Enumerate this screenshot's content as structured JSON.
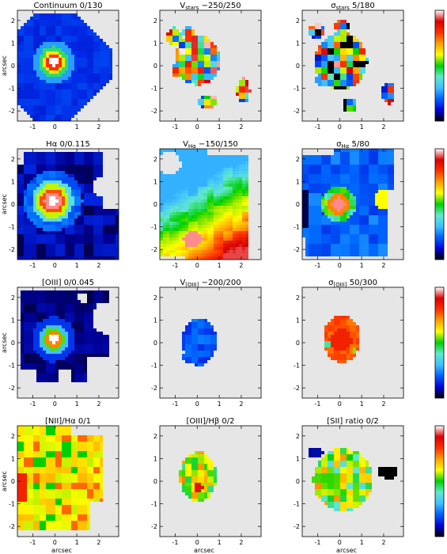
{
  "figure": {
    "background": "#ffffff",
    "map_background": "#e6e6e6",
    "y_axis_label": "arcsec",
    "x_axis_label": "arcsec",
    "x_ticks": [
      "-1",
      "0",
      "1",
      "2"
    ],
    "y_ticks": [
      "2",
      "1",
      "0",
      "-1",
      "-2"
    ],
    "colorbar_gradient": [
      "#000000",
      "#0000dd",
      "#0060ff",
      "#40c0ff",
      "#60e8d0",
      "#00d000",
      "#ffff00",
      "#ffa000",
      "#ff3000",
      "#dd0000",
      "#ffffff"
    ]
  },
  "panels": [
    {
      "row": 0,
      "col": 0,
      "title": "Continuum   0/130",
      "sub": "",
      "title_tail": "",
      "style": "continuum"
    },
    {
      "row": 0,
      "col": 1,
      "title": "V",
      "sub": "stars",
      "title_tail": "  −250/250",
      "style": "vstars"
    },
    {
      "row": 0,
      "col": 2,
      "title": "σ",
      "sub": "stars",
      "title_tail": "  5/180",
      "style": "sigstars"
    },
    {
      "row": 1,
      "col": 0,
      "title": "Hα    0/0.115",
      "sub": "",
      "title_tail": "",
      "style": "halpha"
    },
    {
      "row": 1,
      "col": 1,
      "title": "V",
      "sub": "Hα",
      "title_tail": "  −150/150",
      "style": "vha"
    },
    {
      "row": 1,
      "col": 2,
      "title": "σ",
      "sub": "Hα",
      "title_tail": "  5/80",
      "style": "sigha"
    },
    {
      "row": 2,
      "col": 0,
      "title": "[OIII]   0/0.045",
      "sub": "",
      "title_tail": "",
      "style": "oiii"
    },
    {
      "row": 2,
      "col": 1,
      "title": "V",
      "sub": "[OIII]",
      "title_tail": "  −200/200",
      "style": "voiii"
    },
    {
      "row": 2,
      "col": 2,
      "title": "σ",
      "sub": "[OIII]",
      "title_tail": "  50/300",
      "style": "sigoiii"
    },
    {
      "row": 3,
      "col": 0,
      "title": "[NII]/Hα  0/1",
      "sub": "",
      "title_tail": "",
      "style": "nii"
    },
    {
      "row": 3,
      "col": 1,
      "title": "[OIII]/Hβ  0/2",
      "sub": "",
      "title_tail": "",
      "style": "oiiihb"
    },
    {
      "row": 3,
      "col": 2,
      "title": "[SII] ratio 0/2",
      "sub": "",
      "title_tail": "",
      "style": "sii"
    }
  ]
}
